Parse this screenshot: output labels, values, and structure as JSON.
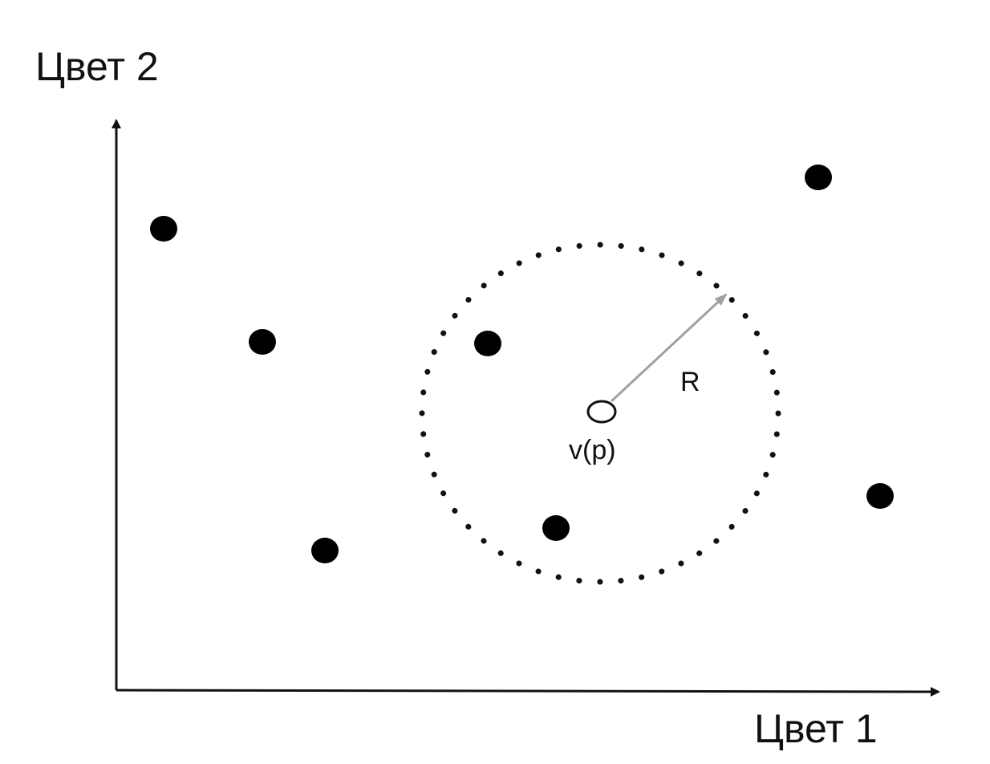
{
  "diagram": {
    "axis_x_label": "Цвет 1",
    "axis_y_label": "Цвет 2",
    "query_point_label": "v(p)",
    "radius_label": "R",
    "colors": {
      "axis": "#111111",
      "point": "#000000",
      "radius_arrow": "#a0a0a0",
      "neighborhood_dots": "#111111",
      "query_point_fill": "#ffffff"
    }
  }
}
